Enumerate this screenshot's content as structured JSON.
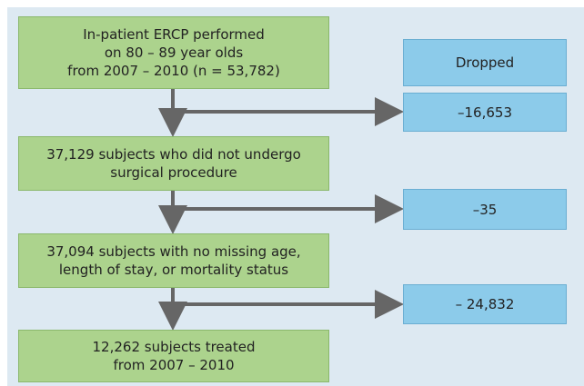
{
  "nodes": [
    {
      "lines": [
        "In-patient ERCP performed",
        "on 80 – 89 year olds",
        "from 2007 – 2010 (n = 53,782)"
      ]
    },
    {
      "lines": [
        "37,129 subjects who did not undergo",
        "surgical procedure"
      ]
    },
    {
      "lines": [
        "37,094 subjects with no missing age,",
        "length of stay, or mortality status"
      ]
    },
    {
      "lines": [
        "12,262 subjects treated",
        "from 2007 – 2010"
      ]
    }
  ],
  "dropped": {
    "header": "Dropped",
    "values": [
      "–16,653",
      "–35",
      "– 24,832"
    ]
  }
}
